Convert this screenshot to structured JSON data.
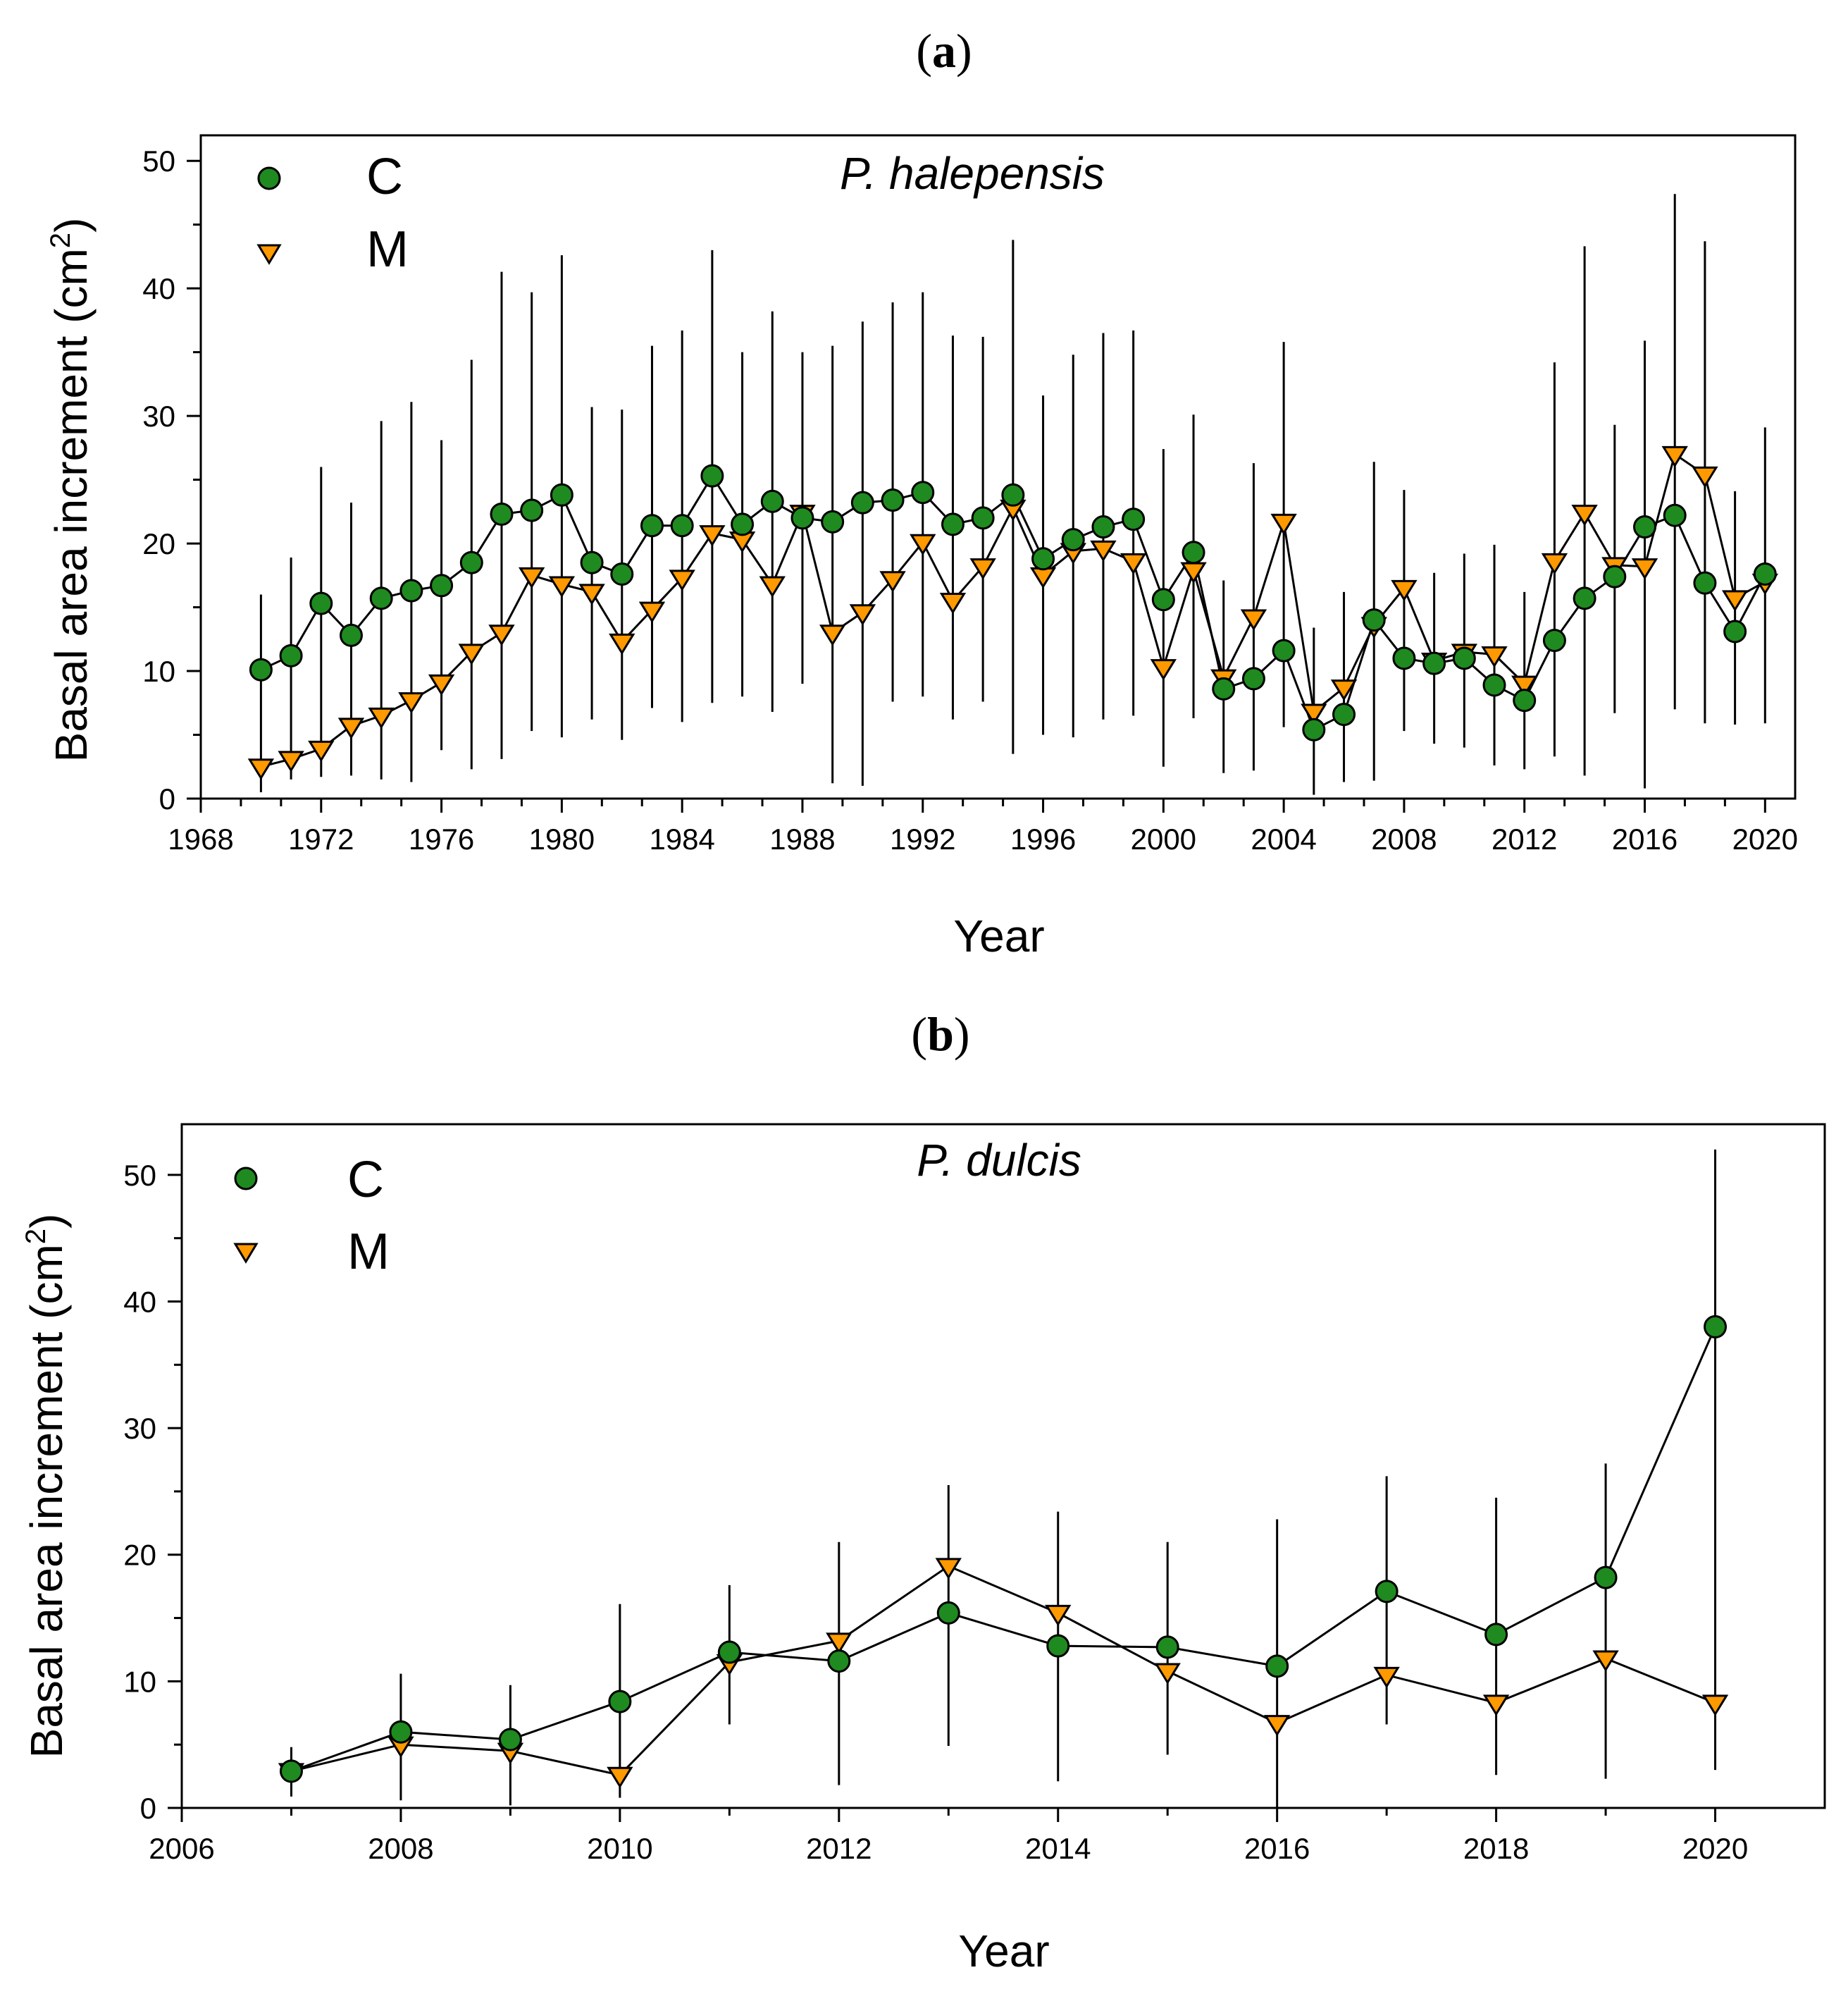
{
  "colors": {
    "c_fill": "#1f8a1f",
    "m_fill": "#ff9900",
    "stroke": "#000000",
    "background": "#ffffff"
  },
  "chart_data": [
    {
      "type": "line",
      "panel_label": "(a)",
      "panel_letter": "a",
      "title": "P. halepensis",
      "xlabel": "Year",
      "ylabel": "Basal area increment (cm²)",
      "ylabel_main": "Basal area increment (cm",
      "ylabel_sup": "2",
      "ylabel_close": ")",
      "xlim": [
        1968,
        2021
      ],
      "ylim": [
        0,
        52
      ],
      "xticks": [
        1968,
        1972,
        1976,
        1980,
        1984,
        1988,
        1992,
        1996,
        2000,
        2004,
        2008,
        2012,
        2016,
        2020
      ],
      "xticklabels": [
        "1968",
        "1972",
        "1976",
        "1980",
        "1984",
        "1988",
        "1992",
        "1996",
        "2000",
        "2004",
        "2008",
        "2012",
        "2016",
        "2020"
      ],
      "yticks": [
        0,
        10,
        20,
        30,
        40,
        50
      ],
      "yticklabels": [
        "0",
        "10",
        "20",
        "30",
        "40",
        "50"
      ],
      "legend_position": "top-left",
      "x": [
        1970,
        1971,
        1972,
        1973,
        1974,
        1975,
        1976,
        1977,
        1978,
        1979,
        1980,
        1981,
        1982,
        1983,
        1984,
        1985,
        1986,
        1987,
        1988,
        1989,
        1990,
        1991,
        1992,
        1993,
        1994,
        1995,
        1996,
        1997,
        1998,
        1999,
        2000,
        2001,
        2002,
        2003,
        2004,
        2005,
        2006,
        2007,
        2008,
        2009,
        2010,
        2011,
        2012,
        2013,
        2014,
        2015,
        2016,
        2017,
        2018,
        2019,
        2020
      ],
      "series": [
        {
          "name": "C",
          "marker": "circle",
          "values": [
            10.1,
            11.2,
            15.3,
            12.8,
            15.7,
            16.3,
            16.7,
            18.5,
            22.3,
            22.6,
            23.8,
            18.5,
            17.6,
            21.4,
            21.4,
            25.3,
            21.5,
            23.3,
            22.0,
            21.7,
            23.2,
            23.4,
            24.0,
            21.5,
            22.0,
            23.8,
            18.8,
            20.3,
            21.3,
            21.9,
            15.6,
            19.3,
            8.6,
            9.4,
            11.6,
            5.4,
            6.6,
            14.0,
            11.0,
            10.6,
            11.0,
            8.9,
            7.7,
            12.4,
            15.7,
            17.4,
            21.3,
            22.2,
            16.9,
            13.1,
            17.6
          ]
        },
        {
          "name": "M",
          "marker": "triangle-down",
          "values": [
            2.5,
            3.1,
            3.9,
            5.7,
            6.5,
            7.7,
            9.1,
            11.5,
            13.0,
            17.5,
            16.8,
            16.2,
            12.3,
            14.8,
            17.3,
            20.8,
            20.3,
            16.8,
            22.4,
            13.0,
            14.6,
            17.2,
            20.1,
            15.5,
            18.2,
            22.8,
            17.5,
            19.4,
            19.6,
            18.6,
            10.3,
            17.9,
            9.5,
            14.2,
            21.7,
            6.8,
            8.7,
            13.6,
            16.5,
            10.8,
            11.5,
            11.3,
            9.0,
            18.6,
            22.4,
            18.3,
            18.2,
            27.0,
            25.4,
            15.7,
            17.0
          ]
        }
      ],
      "error_bars": {
        "lower": [
          0.5,
          1.5,
          1.7,
          1.8,
          1.5,
          1.3,
          3.8,
          2.3,
          3.1,
          5.3,
          4.8,
          6.2,
          4.6,
          7.1,
          6.0,
          7.5,
          8.0,
          6.8,
          9.0,
          1.2,
          1.0,
          7.6,
          8.0,
          6.2,
          7.6,
          3.5,
          5.0,
          4.8,
          6.2,
          6.5,
          2.5,
          6.3,
          2.0,
          2.2,
          5.6,
          0.3,
          1.3,
          1.4,
          5.3,
          4.3,
          4.0,
          2.6,
          2.3,
          3.3,
          1.8,
          6.7,
          0.8,
          7.0,
          5.9,
          5.8,
          5.9
        ],
        "upper": [
          16.0,
          18.9,
          26.0,
          23.2,
          29.6,
          31.1,
          28.1,
          34.4,
          41.3,
          39.7,
          42.6,
          30.7,
          30.5,
          35.5,
          36.7,
          43.0,
          35.0,
          38.2,
          35.0,
          35.5,
          37.4,
          38.9,
          39.7,
          36.3,
          36.2,
          43.8,
          31.6,
          34.8,
          36.5,
          36.7,
          27.4,
          30.1,
          17.1,
          26.3,
          35.8,
          13.4,
          16.2,
          26.4,
          24.2,
          17.7,
          19.2,
          19.9,
          16.2,
          34.2,
          43.3,
          29.3,
          35.9,
          47.4,
          43.7,
          24.1,
          29.1
        ]
      }
    },
    {
      "type": "line",
      "panel_label": "(b)",
      "panel_letter": "b",
      "title": "P. dulcis",
      "xlabel": "Year",
      "ylabel": "Basal area increment (cm²)",
      "ylabel_main": "Basal area increment (cm",
      "ylabel_sup": "2",
      "ylabel_close": ")",
      "xlim": [
        2006,
        2021
      ],
      "ylim": [
        0,
        54
      ],
      "xticks": [
        2006,
        2008,
        2010,
        2012,
        2014,
        2016,
        2018,
        2020
      ],
      "xticklabels": [
        "2006",
        "2008",
        "2010",
        "2012",
        "2014",
        "2016",
        "2018",
        "2020"
      ],
      "yticks": [
        0,
        10,
        20,
        30,
        40,
        50
      ],
      "yticklabels": [
        "0",
        "10",
        "20",
        "30",
        "40",
        "50"
      ],
      "legend_position": "top-left",
      "x": [
        2007,
        2008,
        2009,
        2010,
        2011,
        2012,
        2013,
        2014,
        2015,
        2016,
        2017,
        2018,
        2019,
        2020
      ],
      "series": [
        {
          "name": "C",
          "marker": "circle",
          "values": [
            2.9,
            6.0,
            5.4,
            8.4,
            12.3,
            11.6,
            15.4,
            12.8,
            12.7,
            11.2,
            17.1,
            13.7,
            18.2,
            38.0
          ]
        },
        {
          "name": "M",
          "marker": "triangle-down",
          "values": [
            2.9,
            5.0,
            4.5,
            2.6,
            11.5,
            13.2,
            19.1,
            15.4,
            10.8,
            6.7,
            10.5,
            8.3,
            11.8,
            8.3
          ]
        }
      ],
      "error_bars": {
        "lower": [
          0.9,
          0.6,
          0.2,
          0.8,
          6.6,
          1.8,
          4.9,
          2.1,
          4.2,
          0.0,
          6.6,
          2.6,
          2.3,
          3.0
        ],
        "upper": [
          4.8,
          10.6,
          9.7,
          16.1,
          17.6,
          21.0,
          25.5,
          23.4,
          21.0,
          22.8,
          26.2,
          24.5,
          27.2,
          52.0
        ]
      }
    }
  ]
}
